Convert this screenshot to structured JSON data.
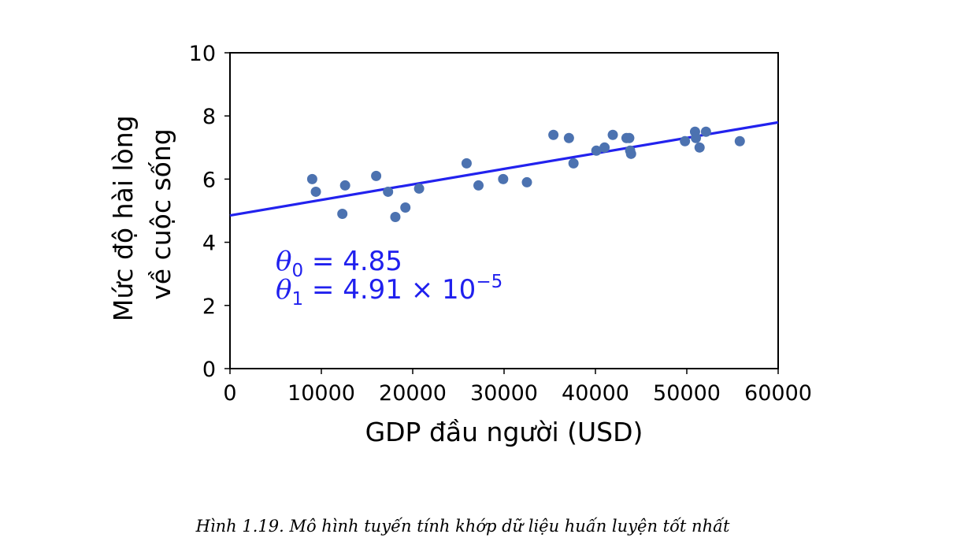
{
  "chart_data": {
    "type": "scatter",
    "xlabel": "GDP đầu người (USD)",
    "ylabel_lines": [
      "Mức độ hài lòng",
      "về cuộc sống"
    ],
    "xlim": [
      0,
      60000
    ],
    "ylim": [
      0,
      10
    ],
    "x_ticks": [
      "0",
      "10000",
      "20000",
      "30000",
      "40000",
      "50000",
      "60000"
    ],
    "y_ticks": [
      "0",
      "2",
      "4",
      "6",
      "8",
      "10"
    ],
    "grid": false,
    "marker_color": "#4c72b0",
    "line_color": "#2222ee",
    "points": [
      {
        "x": 9000,
        "y": 6.0
      },
      {
        "x": 9400,
        "y": 5.6
      },
      {
        "x": 12300,
        "y": 4.9
      },
      {
        "x": 12600,
        "y": 5.8
      },
      {
        "x": 16000,
        "y": 6.1
      },
      {
        "x": 17300,
        "y": 5.6
      },
      {
        "x": 18100,
        "y": 4.8
      },
      {
        "x": 19200,
        "y": 5.1
      },
      {
        "x": 20700,
        "y": 5.7
      },
      {
        "x": 25900,
        "y": 6.5
      },
      {
        "x": 27200,
        "y": 5.8
      },
      {
        "x": 29900,
        "y": 6.0
      },
      {
        "x": 32500,
        "y": 5.9
      },
      {
        "x": 35400,
        "y": 7.4
      },
      {
        "x": 37100,
        "y": 7.3
      },
      {
        "x": 37600,
        "y": 6.5
      },
      {
        "x": 40100,
        "y": 6.9
      },
      {
        "x": 41000,
        "y": 7.0
      },
      {
        "x": 41900,
        "y": 7.4
      },
      {
        "x": 43400,
        "y": 7.3
      },
      {
        "x": 43700,
        "y": 7.3
      },
      {
        "x": 43800,
        "y": 6.9
      },
      {
        "x": 43900,
        "y": 6.8
      },
      {
        "x": 49800,
        "y": 7.2
      },
      {
        "x": 50900,
        "y": 7.5
      },
      {
        "x": 51000,
        "y": 7.3
      },
      {
        "x": 51400,
        "y": 7.0
      },
      {
        "x": 52100,
        "y": 7.5
      },
      {
        "x": 55800,
        "y": 7.2
      }
    ],
    "fit_line": {
      "theta0": 4.85,
      "theta1": 4.91e-05
    },
    "annotation": {
      "theta0_symbol": "θ",
      "theta0_sub": "0",
      "theta0_rest": " = 4.85",
      "theta1_symbol": "θ",
      "theta1_sub": "1",
      "theta1_rest": " = 4.91 × 10",
      "theta1_exp": "−5"
    }
  },
  "caption": "Hình 1.19. Mô hình tuyến tính khớp dữ liệu huấn luyện tốt nhất"
}
